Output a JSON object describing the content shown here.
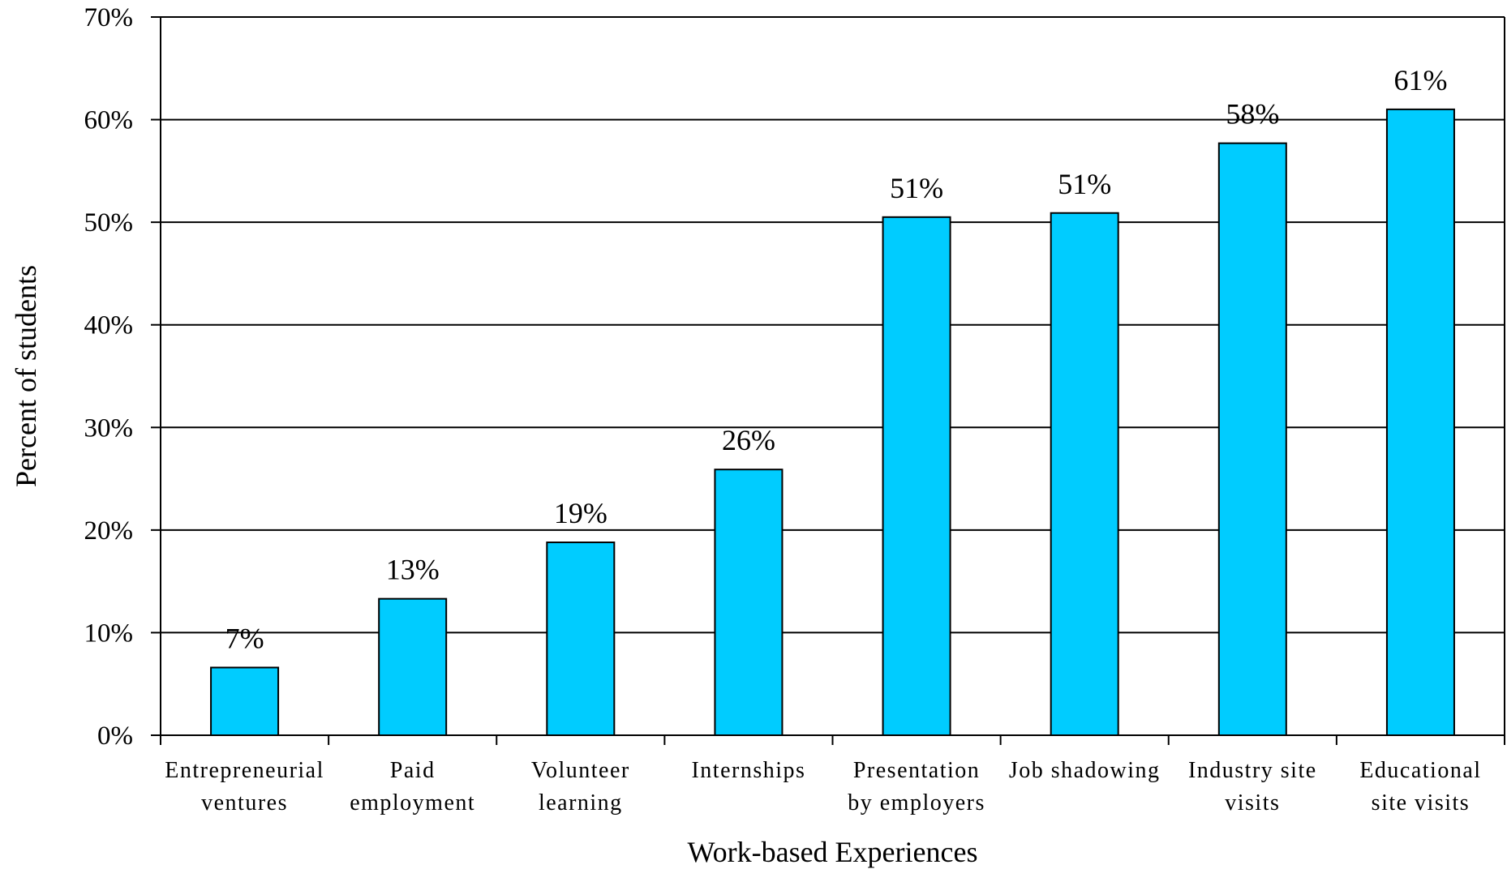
{
  "chart_data": {
    "type": "bar",
    "categories": [
      [
        "Entrepreneurial",
        "ventures"
      ],
      [
        "Paid",
        "employment"
      ],
      [
        "Volunteer",
        "learning"
      ],
      [
        "Internships"
      ],
      [
        "Presentation",
        "by employers"
      ],
      [
        "Job shadowing"
      ],
      [
        "Industry site",
        "visits"
      ],
      [
        "Educational",
        "site visits"
      ]
    ],
    "values": [
      6.6,
      13.3,
      18.8,
      25.9,
      50.5,
      50.9,
      57.7,
      61.0
    ],
    "data_labels": [
      "7%",
      "13%",
      "19%",
      "26%",
      "51%",
      "51%",
      "58%",
      "61%"
    ],
    "title": "",
    "xlabel": "Work-based Experiences",
    "ylabel": "Percent of students",
    "ylim": [
      0,
      70
    ],
    "yticks": [
      0,
      10,
      20,
      30,
      40,
      50,
      60,
      70
    ],
    "ytick_labels": [
      "0%",
      "10%",
      "20%",
      "30%",
      "40%",
      "50%",
      "60%",
      "70%"
    ],
    "grid": true,
    "legend": "none",
    "bar_color": "#00CCFF",
    "bar_stroke": "#000000"
  }
}
